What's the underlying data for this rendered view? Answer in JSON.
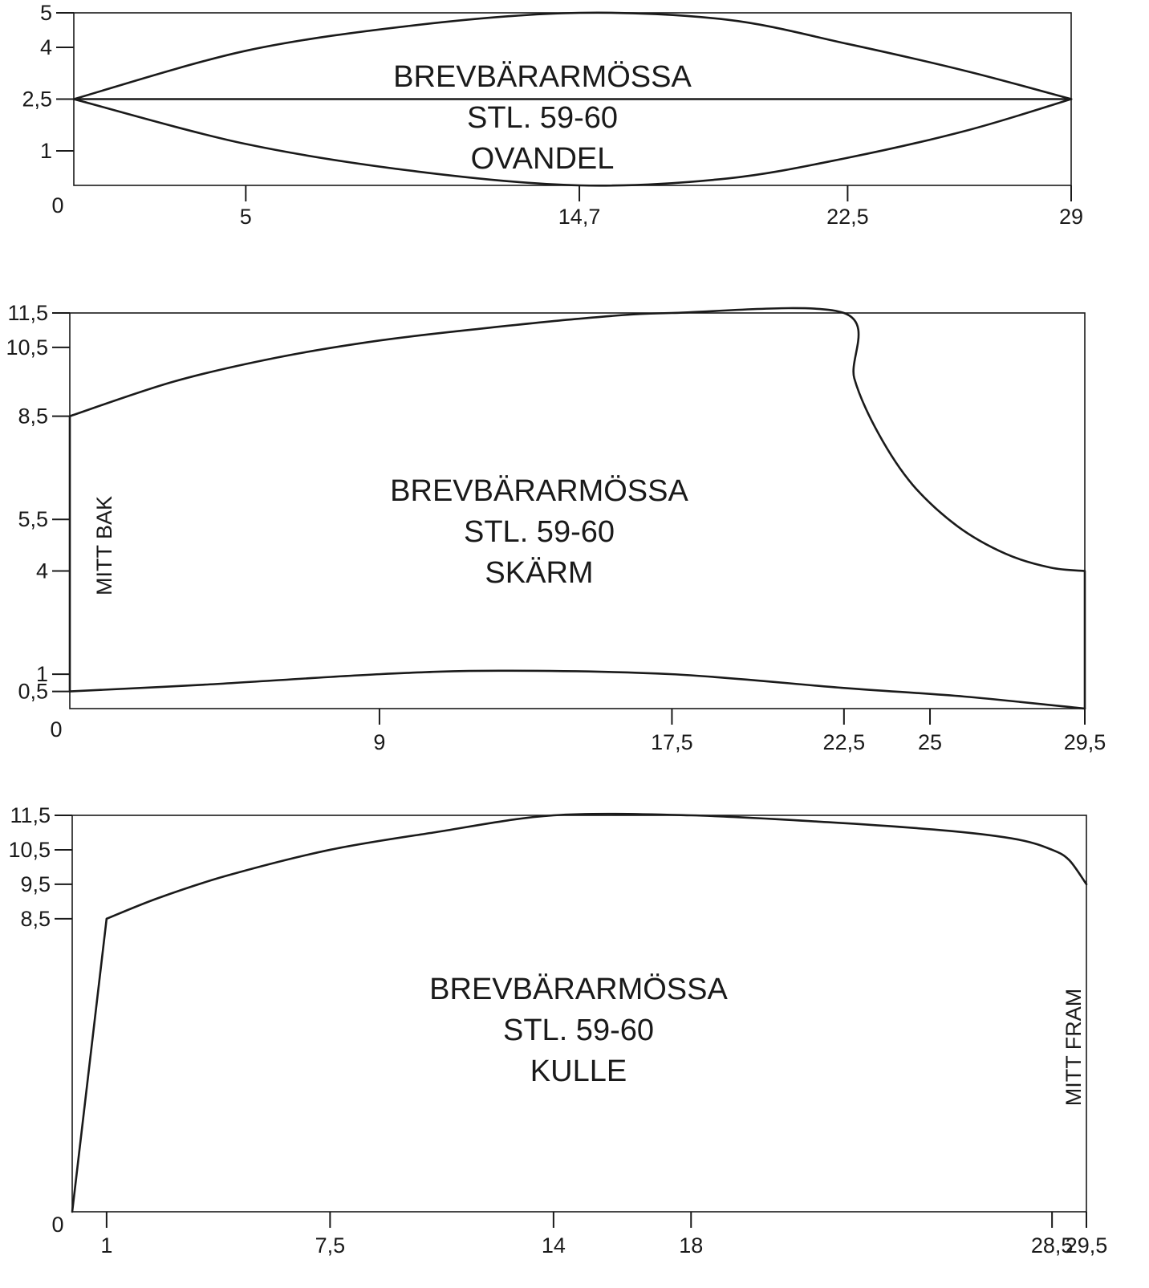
{
  "colors": {
    "ink": "#1a1a1a",
    "paper": "#ffffff"
  },
  "panels": [
    {
      "id": "ovandel",
      "title_lines": [
        "BREVBÄRARMÖSSA",
        "STL. 59-60",
        "OVANDEL"
      ],
      "side_label": "",
      "x_ticks": [
        {
          "v": 0,
          "label": "0"
        },
        {
          "v": 5,
          "label": "5"
        },
        {
          "v": 14.7,
          "label": "14,7"
        },
        {
          "v": 22.5,
          "label": "22,5"
        },
        {
          "v": 29,
          "label": "29"
        }
      ],
      "y_ticks": [
        {
          "v": 5,
          "label": "5"
        },
        {
          "v": 4,
          "label": "4"
        },
        {
          "v": 2.5,
          "label": "2,5"
        },
        {
          "v": 1,
          "label": "1"
        }
      ],
      "curves": [
        {
          "name": "upper-curve",
          "points": [
            [
              0,
              2.5
            ],
            [
              5,
              3.9
            ],
            [
              10,
              4.65
            ],
            [
              14.7,
              5
            ],
            [
              19,
              4.8
            ],
            [
              22.5,
              4.1
            ],
            [
              26,
              3.3
            ],
            [
              29,
              2.5
            ]
          ]
        },
        {
          "name": "center-line",
          "points": [
            [
              0,
              2.5
            ],
            [
              29,
              2.5
            ]
          ]
        },
        {
          "name": "lower-curve",
          "points": [
            [
              0,
              2.5
            ],
            [
              5,
              1.2
            ],
            [
              10,
              0.4
            ],
            [
              14.7,
              0
            ],
            [
              19,
              0.2
            ],
            [
              22.5,
              0.8
            ],
            [
              26,
              1.6
            ],
            [
              29,
              2.5
            ]
          ]
        }
      ]
    },
    {
      "id": "skarm",
      "title_lines": [
        "BREVBÄRARMÖSSA",
        "STL. 59-60",
        "SKÄRM"
      ],
      "side_label": "MITT BAK",
      "x_ticks": [
        {
          "v": 0,
          "label": "0"
        },
        {
          "v": 9,
          "label": "9"
        },
        {
          "v": 17.5,
          "label": "17,5"
        },
        {
          "v": 22.5,
          "label": "22,5"
        },
        {
          "v": 25,
          "label": "25"
        },
        {
          "v": 29.5,
          "label": "29,5"
        }
      ],
      "y_ticks": [
        {
          "v": 11.5,
          "label": "11,5"
        },
        {
          "v": 10.5,
          "label": "10,5"
        },
        {
          "v": 8.5,
          "label": "8,5"
        },
        {
          "v": 5.5,
          "label": "5,5"
        },
        {
          "v": 4,
          "label": "4"
        },
        {
          "v": 1,
          "label": "1"
        },
        {
          "v": 0.5,
          "label": "0,5"
        }
      ],
      "curves": [
        {
          "name": "outer-edge",
          "points": [
            [
              0,
              0.5
            ],
            [
              0,
              8.5
            ],
            [
              3,
              9.5
            ],
            [
              6,
              10.2
            ],
            [
              9,
              10.7
            ],
            [
              12,
              11.05
            ],
            [
              15,
              11.35
            ],
            [
              17.5,
              11.5
            ],
            [
              22.5,
              11.5
            ],
            [
              22.8,
              9.6
            ],
            [
              23.5,
              8.0
            ],
            [
              24.5,
              6.5
            ],
            [
              25.8,
              5.3
            ],
            [
              27.2,
              4.5
            ],
            [
              28.5,
              4.1
            ],
            [
              29.5,
              4.0
            ],
            [
              29.5,
              0
            ]
          ]
        },
        {
          "name": "inner-edge",
          "points": [
            [
              0,
              0.5
            ],
            [
              4,
              0.7
            ],
            [
              9,
              1.0
            ],
            [
              12.5,
              1.1
            ],
            [
              17.5,
              1.0
            ],
            [
              22.5,
              0.6
            ],
            [
              26,
              0.35
            ],
            [
              29.5,
              0
            ]
          ]
        }
      ]
    },
    {
      "id": "kulle",
      "title_lines": [
        "BREVBÄRARMÖSSA",
        "STL. 59-60",
        "KULLE"
      ],
      "side_label": "MITT FRAM",
      "x_ticks": [
        {
          "v": 0,
          "label": "0"
        },
        {
          "v": 1,
          "label": "1"
        },
        {
          "v": 7.5,
          "label": "7,5"
        },
        {
          "v": 14,
          "label": "14"
        },
        {
          "v": 18,
          "label": "18"
        },
        {
          "v": 28.5,
          "label": "28,5"
        },
        {
          "v": 29.5,
          "label": "29,5"
        }
      ],
      "y_ticks": [
        {
          "v": 11.5,
          "label": "11,5"
        },
        {
          "v": 10.5,
          "label": "10,5"
        },
        {
          "v": 9.5,
          "label": "9,5"
        },
        {
          "v": 8.5,
          "label": "8,5"
        }
      ],
      "curves": [
        {
          "name": "crown-edge",
          "points": [
            [
              0,
              0
            ],
            [
              1,
              8.5
            ],
            [
              2.5,
              9.1
            ],
            [
              4.5,
              9.75
            ],
            [
              7.5,
              10.5
            ],
            [
              10.5,
              11.0
            ],
            [
              14,
              11.5
            ],
            [
              18,
              11.5
            ],
            [
              22,
              11.3
            ],
            [
              25.5,
              11.05
            ],
            [
              27.5,
              10.8
            ],
            [
              28.5,
              10.5
            ],
            [
              29.0,
              10.2
            ],
            [
              29.5,
              9.5
            ]
          ]
        }
      ]
    }
  ]
}
